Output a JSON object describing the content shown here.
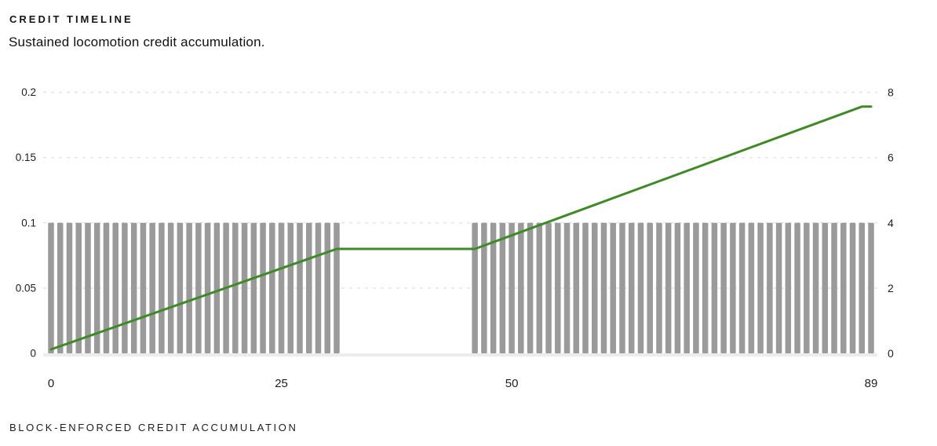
{
  "header": {
    "title": "CREDIT TIMELINE",
    "subtitle": "Sustained locomotion credit accumulation."
  },
  "footer": {
    "label": "BLOCK-ENFORCED CREDIT ACCUMULATION"
  },
  "chart_data": {
    "type": "bar",
    "subtype": "bar-plus-line-dual-axis",
    "title": "CREDIT TIMELINE",
    "subtitle": "Sustained locomotion credit accumulation.",
    "caption": "BLOCK-ENFORCED CREDIT ACCUMULATION",
    "xlabel": "",
    "ylabel": "",
    "x_domain": [
      0,
      89
    ],
    "x_ticks": [
      {
        "value": 0,
        "label": "0"
      },
      {
        "value": 25,
        "label": "25"
      },
      {
        "value": 50,
        "label": "50"
      },
      {
        "value": 89,
        "label": "89"
      }
    ],
    "left_axis": {
      "min": 0,
      "max": 0.2,
      "ticks": [
        {
          "value": 0,
          "label": "0"
        },
        {
          "value": 0.05,
          "label": "0.05"
        },
        {
          "value": 0.1,
          "label": "0.1"
        },
        {
          "value": 0.15,
          "label": "0.15"
        },
        {
          "value": 0.2,
          "label": "0.2"
        }
      ]
    },
    "right_axis": {
      "min": 0,
      "max": 8,
      "ticks": [
        {
          "value": 0,
          "label": "0"
        },
        {
          "value": 2,
          "label": "2"
        },
        {
          "value": 4,
          "label": "4"
        },
        {
          "value": 6,
          "label": "6"
        },
        {
          "value": 8,
          "label": "8"
        }
      ]
    },
    "bars": {
      "name": "block-enforced-steps",
      "step_ranges": [
        [
          0,
          31
        ],
        [
          46,
          89
        ]
      ],
      "value_left_axis": 0.1,
      "value_right_axis": 4,
      "color": "#9a9a9a"
    },
    "line": {
      "name": "sustained-locomotion-credit",
      "color": "#3e8a26",
      "width": 3,
      "points_left_axis": [
        [
          0,
          0.003
        ],
        [
          31,
          0.08
        ],
        [
          46,
          0.08
        ],
        [
          88,
          0.189
        ],
        [
          89,
          0.189
        ]
      ]
    },
    "grid": {
      "style": "dashed-horizontal",
      "color": "#e4e4e4",
      "baseline_color": "#ececec"
    }
  }
}
